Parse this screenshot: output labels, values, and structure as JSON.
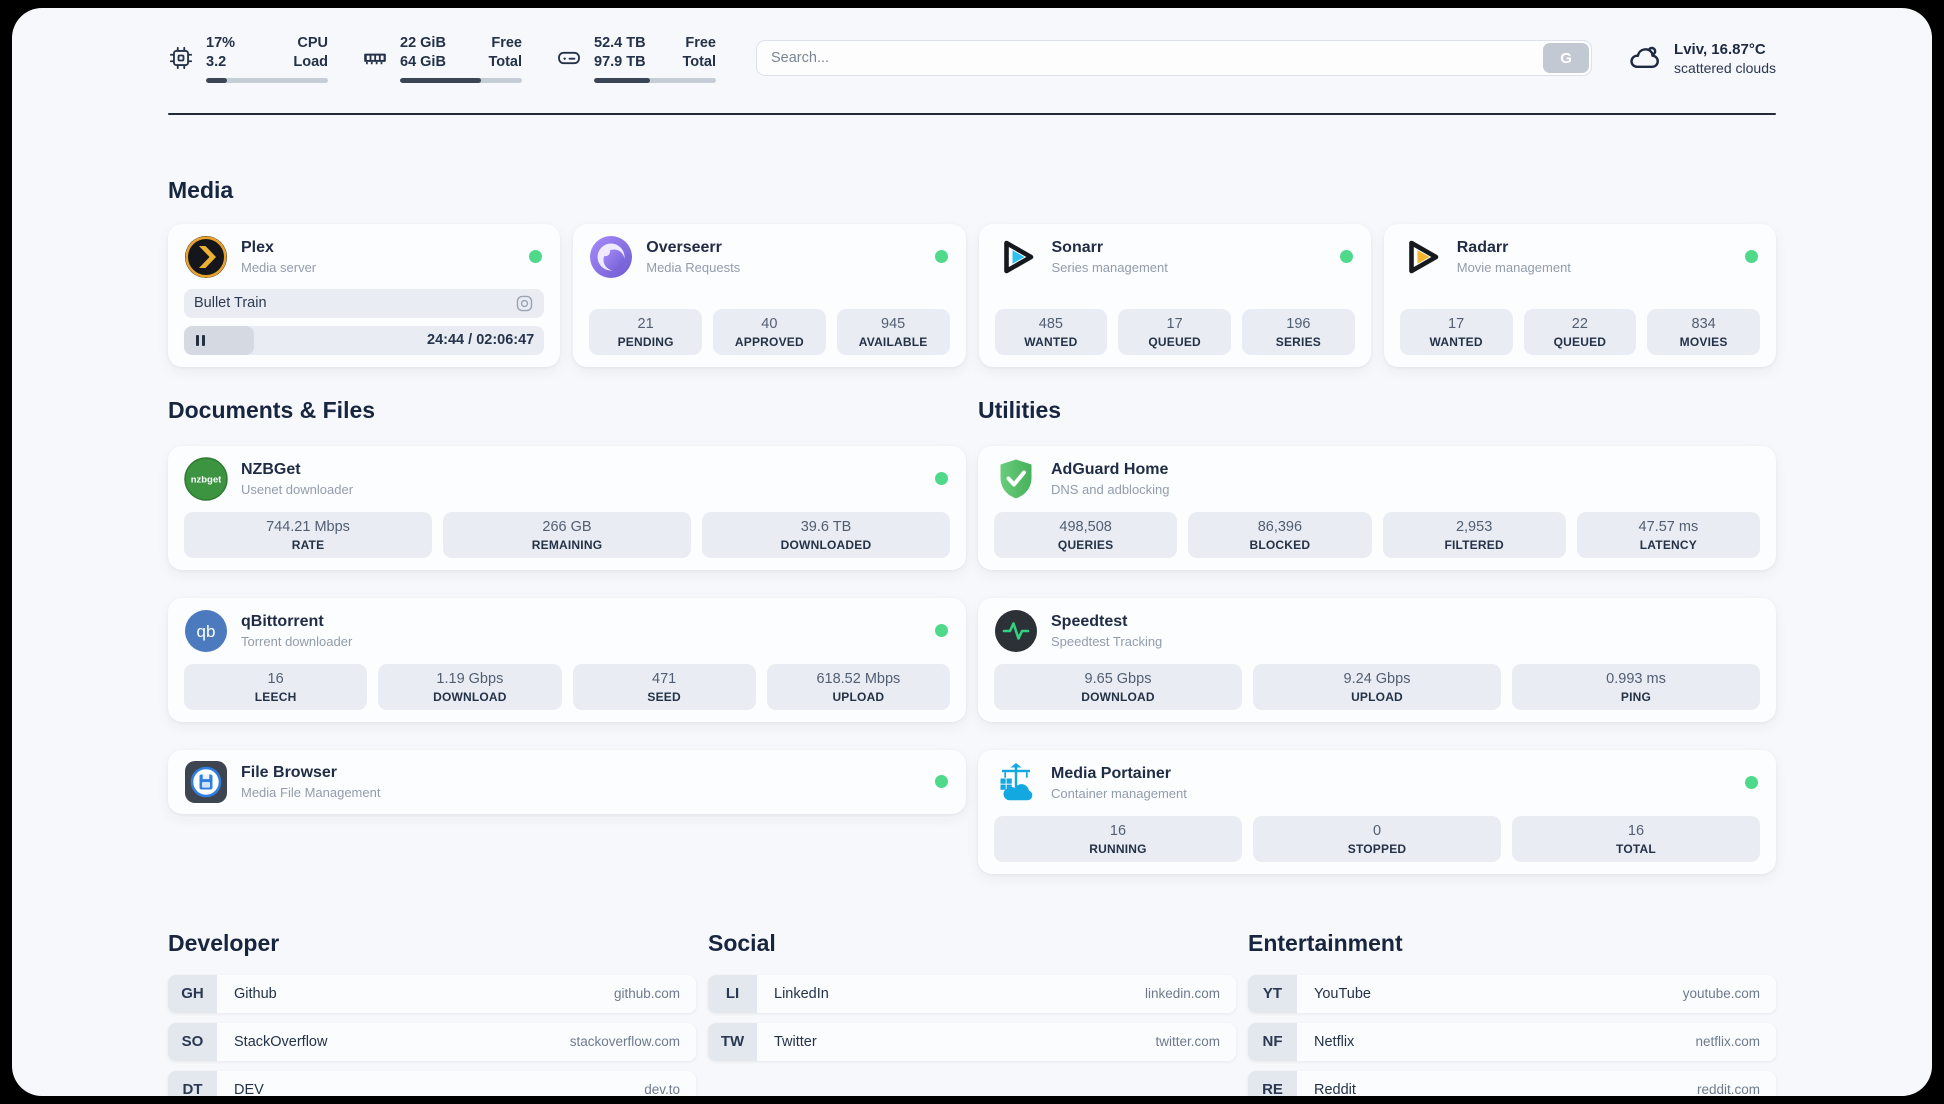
{
  "header": {
    "monitors": [
      {
        "icon": "cpu-chip-icon",
        "value_top": "17%",
        "value_bottom": "3.2",
        "label_top": "CPU",
        "label_bottom": "Load",
        "progress_percent": 17
      },
      {
        "icon": "ram-icon",
        "value_top": "22 GiB",
        "value_bottom": "64 GiB",
        "label_top": "Free",
        "label_bottom": "Total",
        "progress_percent": 66
      },
      {
        "icon": "disk-icon",
        "value_top": "52.4 TB",
        "value_bottom": "97.9 TB",
        "label_top": "Free",
        "label_bottom": "Total",
        "progress_percent": 46
      }
    ],
    "search": {
      "placeholder": "Search...",
      "button_label": "G"
    },
    "weather": {
      "icon": "cloud-icon",
      "line1": "Lviv, 16.87°C",
      "line2": "scattered clouds"
    }
  },
  "sections": {
    "media": {
      "title": "Media",
      "apps": [
        {
          "name": "Plex",
          "subtitle": "Media server",
          "icon": "plex-icon",
          "online": true,
          "now_playing": {
            "title": "Bullet Train",
            "state": "paused",
            "time": "24:44 / 02:06:47",
            "progress_percent": 19.5
          }
        },
        {
          "name": "Overseerr",
          "subtitle": "Media Requests",
          "icon": "overseerr-icon",
          "online": true,
          "stats": [
            {
              "value": "21",
              "label": "PENDING"
            },
            {
              "value": "40",
              "label": "APPROVED"
            },
            {
              "value": "945",
              "label": "AVAILABLE"
            }
          ]
        },
        {
          "name": "Sonarr",
          "subtitle": "Series management",
          "icon": "sonarr-icon",
          "online": true,
          "stats": [
            {
              "value": "485",
              "label": "WANTED"
            },
            {
              "value": "17",
              "label": "QUEUED"
            },
            {
              "value": "196",
              "label": "SERIES"
            }
          ]
        },
        {
          "name": "Radarr",
          "subtitle": "Movie management",
          "icon": "radarr-icon",
          "online": true,
          "stats": [
            {
              "value": "17",
              "label": "WANTED"
            },
            {
              "value": "22",
              "label": "QUEUED"
            },
            {
              "value": "834",
              "label": "MOVIES"
            }
          ]
        }
      ]
    },
    "documents": {
      "title": "Documents & Files",
      "apps": [
        {
          "name": "NZBGet",
          "subtitle": "Usenet downloader",
          "icon": "nzbget-icon",
          "online": true,
          "stats": [
            {
              "value": "744.21 Mbps",
              "label": "RATE"
            },
            {
              "value": "266 GB",
              "label": "REMAINING"
            },
            {
              "value": "39.6 TB",
              "label": "DOWNLOADED"
            }
          ]
        },
        {
          "name": "qBittorrent",
          "subtitle": "Torrent downloader",
          "icon": "qbittorrent-icon",
          "online": true,
          "stats": [
            {
              "value": "16",
              "label": "LEECH"
            },
            {
              "value": "1.19 Gbps",
              "label": "DOWNLOAD"
            },
            {
              "value": "471",
              "label": "SEED"
            },
            {
              "value": "618.52 Mbps",
              "label": "UPLOAD"
            }
          ]
        },
        {
          "name": "File Browser",
          "subtitle": "Media File Management",
          "icon": "filebrowser-icon",
          "online": true
        }
      ]
    },
    "utilities": {
      "title": "Utilities",
      "apps": [
        {
          "name": "AdGuard Home",
          "subtitle": "DNS and adblocking",
          "icon": "adguard-icon",
          "stats": [
            {
              "value": "498,508",
              "label": "QUERIES"
            },
            {
              "value": "86,396",
              "label": "BLOCKED"
            },
            {
              "value": "2,953",
              "label": "FILTERED"
            },
            {
              "value": "47.57 ms",
              "label": "LATENCY"
            }
          ]
        },
        {
          "name": "Speedtest",
          "subtitle": "Speedtest Tracking",
          "icon": "speedtest-icon",
          "stats": [
            {
              "value": "9.65 Gbps",
              "label": "DOWNLOAD"
            },
            {
              "value": "9.24 Gbps",
              "label": "UPLOAD"
            },
            {
              "value": "0.993 ms",
              "label": "PING"
            }
          ]
        },
        {
          "name": "Media Portainer",
          "subtitle": "Container management",
          "icon": "portainer-icon",
          "online": true,
          "stats": [
            {
              "value": "16",
              "label": "RUNNING"
            },
            {
              "value": "0",
              "label": "STOPPED"
            },
            {
              "value": "16",
              "label": "TOTAL"
            }
          ]
        }
      ]
    },
    "bookmarks": [
      {
        "title": "Developer",
        "links": [
          {
            "abbr": "GH",
            "name": "Github",
            "domain": "github.com"
          },
          {
            "abbr": "SO",
            "name": "StackOverflow",
            "domain": "stackoverflow.com"
          },
          {
            "abbr": "DT",
            "name": "DEV",
            "domain": "dev.to"
          }
        ]
      },
      {
        "title": "Social",
        "links": [
          {
            "abbr": "LI",
            "name": "LinkedIn",
            "domain": "linkedin.com"
          },
          {
            "abbr": "TW",
            "name": "Twitter",
            "domain": "twitter.com"
          }
        ]
      },
      {
        "title": "Entertainment",
        "links": [
          {
            "abbr": "YT",
            "name": "YouTube",
            "domain": "youtube.com"
          },
          {
            "abbr": "NF",
            "name": "Netflix",
            "domain": "netflix.com"
          },
          {
            "abbr": "RE",
            "name": "Reddit",
            "domain": "reddit.com"
          }
        ]
      }
    ]
  },
  "colors": {
    "status_online": "#4fd98a",
    "page_bg": "#f7f8fb",
    "stat_box_bg": "#e9edf3",
    "heading_text": "#17253f"
  }
}
